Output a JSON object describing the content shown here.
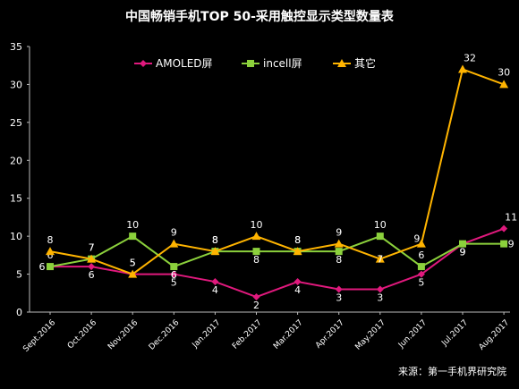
{
  "chart_data": {
    "type": "line",
    "title": "中国畅销手机TOP 50-采用触控显示类型数量表",
    "categories": [
      "Sept.2016",
      "Oct.2016",
      "Nov.2016",
      "Dec.2016",
      "Jan.2017",
      "Feb.2017",
      "Mar.2017",
      "Apr.2017",
      "May.2017",
      "Jun.2017",
      "Jul.2017",
      "Aug.2017"
    ],
    "ylim": [
      0,
      35
    ],
    "yticks": [
      0,
      5,
      10,
      15,
      20,
      25,
      30,
      35
    ],
    "grid": false,
    "legend_position": "top",
    "series": [
      {
        "name": "AMOLED屏",
        "color": "#e0197d",
        "marker": "diamond",
        "values": [
          6,
          6,
          5,
          5,
          4,
          2,
          4,
          3,
          3,
          5,
          9,
          11
        ]
      },
      {
        "name": "incell屏",
        "color": "#8cd13c",
        "marker": "square",
        "values": [
          6,
          7,
          10,
          6,
          8,
          8,
          8,
          8,
          10,
          6,
          9,
          9
        ]
      },
      {
        "name": "其它",
        "color": "#ffb400",
        "marker": "triangle",
        "values": [
          8,
          7,
          5,
          9,
          8,
          10,
          8,
          9,
          7,
          9,
          32,
          30
        ]
      }
    ],
    "source": "来源：第一手机界研究院"
  }
}
